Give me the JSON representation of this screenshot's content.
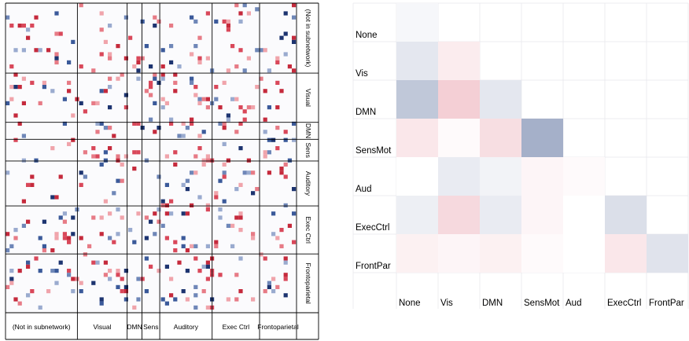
{
  "chart_data": [
    {
      "type": "heatmap",
      "subtype": "connectivity-matrix",
      "groups": [
        "(Not in subnetwork)",
        "Visual",
        "DMN",
        "Sens",
        "Auditory",
        "Exec Ctrl",
        "Frontoparietal"
      ],
      "side_labels": [
        "(Not in subnetwork)",
        "Visual",
        "DMN",
        "Sens",
        "Auditory",
        "Exec Ctrl",
        "Frontoparietal"
      ],
      "group_sizes": [
        17,
        12,
        3,
        4,
        10,
        12,
        12
      ],
      "colors": {
        "positive": "#cc3344",
        "negative": "#2f4a80",
        "grid": "#000000"
      }
    },
    {
      "type": "heatmap",
      "subtype": "lower-triangular",
      "row_labels": [
        "None",
        "Vis",
        "DMN",
        "SensMot",
        "Aud",
        "ExecCtrl",
        "FrontPar"
      ],
      "col_labels": [
        "None",
        "Vis",
        "DMN",
        "SensMot",
        "Aud",
        "ExecCtrl",
        "FrontPar"
      ],
      "values": [
        [
          -0.02
        ],
        [
          -0.06,
          0.04
        ],
        [
          -0.14,
          0.1,
          -0.06
        ],
        [
          0.05,
          0.01,
          0.07,
          -0.2
        ],
        [
          0.0,
          -0.05,
          -0.03,
          0.02,
          0.01
        ],
        [
          -0.04,
          0.08,
          -0.05,
          0.02,
          0.0,
          -0.08
        ],
        [
          0.03,
          0.02,
          0.03,
          0.01,
          0.0,
          0.05,
          -0.07
        ]
      ],
      "color_scale": {
        "positive": "#c8102e",
        "negative": "#1f3a78",
        "max_abs": 0.5
      }
    }
  ]
}
